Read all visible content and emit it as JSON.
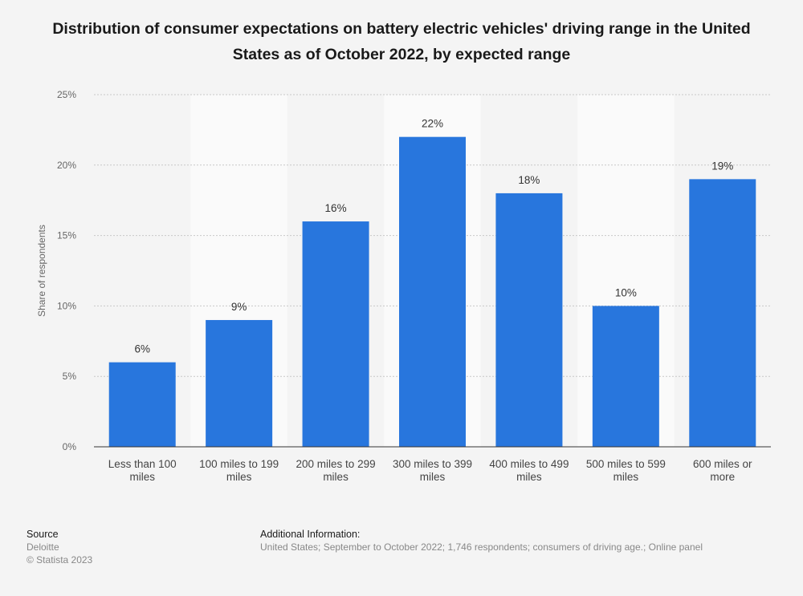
{
  "chart_data": {
    "type": "bar",
    "title": "Distribution of consumer expectations on battery electric vehicles' driving range in the United States as of October 2022, by expected range",
    "xlabel": "",
    "ylabel": "Share of respondents",
    "categories": [
      "Less than 100 miles",
      "100 miles to 199 miles",
      "200 miles to 299 miles",
      "300 miles to 399 miles",
      "400 miles to 499 miles",
      "500 miles to 599 miles",
      "600 miles or more"
    ],
    "category_label_lines": [
      [
        "Less than 100",
        "miles"
      ],
      [
        "100 miles to 199",
        "miles"
      ],
      [
        "200 miles to 299",
        "miles"
      ],
      [
        "300 miles to 399",
        "miles"
      ],
      [
        "400 miles to 499",
        "miles"
      ],
      [
        "500 miles to 599",
        "miles"
      ],
      [
        "600 miles or",
        "more"
      ]
    ],
    "values": [
      6,
      9,
      16,
      22,
      18,
      10,
      19
    ],
    "data_labels": [
      "6%",
      "9%",
      "16%",
      "22%",
      "18%",
      "10%",
      "19%"
    ],
    "yticks": [
      0,
      5,
      10,
      15,
      20,
      25
    ],
    "ytick_labels": [
      "0%",
      "5%",
      "10%",
      "15%",
      "20%",
      "25%"
    ],
    "ylim": [
      0,
      25
    ],
    "grid": true,
    "bar_color": "#2876dd",
    "band_color": "#fafafa",
    "legend": false
  },
  "footer": {
    "source_heading": "Source",
    "source_lines": [
      "Deloitte",
      "© Statista 2023"
    ],
    "info_heading": "Additional Information:",
    "info_text": "United States; September to October 2022; 1,746 respondents; consumers of driving age.; Online panel"
  }
}
